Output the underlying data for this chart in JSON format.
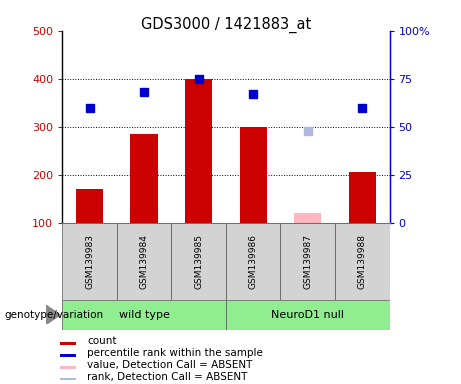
{
  "title": "GDS3000 / 1421883_at",
  "samples": [
    "GSM139983",
    "GSM139984",
    "GSM139985",
    "GSM139986",
    "GSM139987",
    "GSM139988"
  ],
  "bar_values": [
    170,
    285,
    400,
    300,
    null,
    205
  ],
  "bar_absent_values": [
    null,
    null,
    null,
    null,
    120,
    null
  ],
  "rank_values": [
    60,
    68,
    75,
    67,
    null,
    60
  ],
  "rank_absent_values": [
    null,
    null,
    null,
    null,
    48,
    null
  ],
  "bar_color": "#cc0000",
  "bar_absent_color": "#ffb6c1",
  "rank_color": "#0000cc",
  "rank_absent_color": "#b0b8e0",
  "ylim_left": [
    100,
    500
  ],
  "ylim_right": [
    0,
    100
  ],
  "yticks_left": [
    100,
    200,
    300,
    400,
    500
  ],
  "yticks_right": [
    0,
    25,
    50,
    75,
    100
  ],
  "ytick_labels_right": [
    "0",
    "25",
    "50",
    "75",
    "100%"
  ],
  "bar_width": 0.5,
  "plot_bg": "#ffffff",
  "legend_items": [
    {
      "label": "count",
      "color": "#cc0000"
    },
    {
      "label": "percentile rank within the sample",
      "color": "#0000cc"
    },
    {
      "label": "value, Detection Call = ABSENT",
      "color": "#ffb6c1"
    },
    {
      "label": "rank, Detection Call = ABSENT",
      "color": "#b0b8e0"
    }
  ],
  "wild_type_color": "#90ee90",
  "neuro_color": "#90ee90",
  "sample_bg": "#d3d3d3"
}
